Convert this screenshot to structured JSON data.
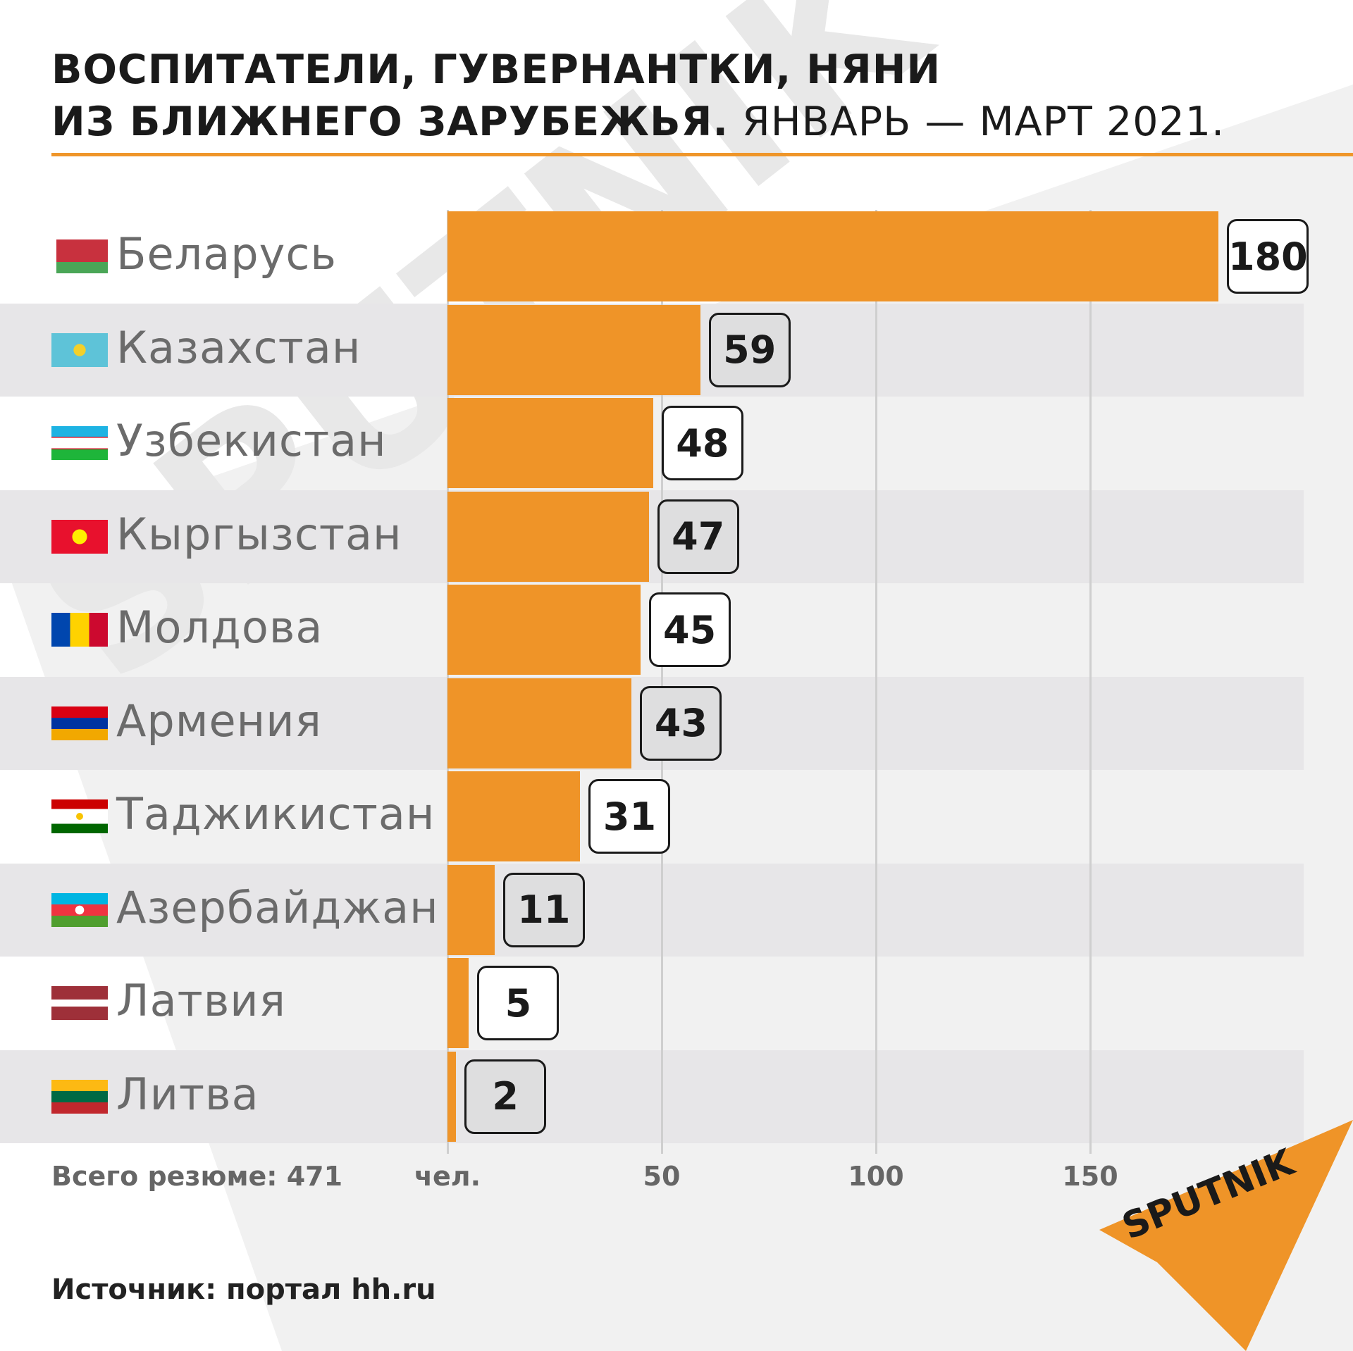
{
  "title": {
    "line1": "ВОСПИТАТЕЛИ, ГУВЕРНАНТКИ, НЯНИ",
    "line2_bold": "ИЗ БЛИЖНЕГО ЗАРУБЕЖЬЯ.",
    "line2_light": " ЯНВАРЬ — МАРТ 2021."
  },
  "total_label": "Всего резюме: 471",
  "source": "Источник: портал hh.ru",
  "logo_text": "SPUTNIK",
  "watermark_text": "SPUTNIK",
  "colors": {
    "bar": "#ef9428",
    "accent_rule": "#ef962a",
    "band": "#e7e6e8",
    "text": "#1a1a1a",
    "muted": "#6b6b6b"
  },
  "chart_data": {
    "type": "bar",
    "orientation": "horizontal",
    "unit_label": "чел.",
    "xlim": [
      0,
      180
    ],
    "xticks": [
      50,
      100,
      150
    ],
    "grid": true,
    "categories": [
      "Беларусь",
      "Казахстан",
      "Узбекистан",
      "Кыргызстан",
      "Молдова",
      "Армения",
      "Таджикистан",
      "Азербайджан",
      "Латвия",
      "Литва"
    ],
    "values": [
      180,
      59,
      48,
      47,
      45,
      43,
      31,
      11,
      5,
      2
    ],
    "flags": [
      "belarus-flag-icon",
      "kazakhstan-flag-icon",
      "uzbekistan-flag-icon",
      "kyrgyzstan-flag-icon",
      "moldova-flag-icon",
      "armenia-flag-icon",
      "tajikistan-flag-icon",
      "azerbaijan-flag-icon",
      "latvia-flag-icon",
      "lithuania-flag-icon"
    ]
  }
}
